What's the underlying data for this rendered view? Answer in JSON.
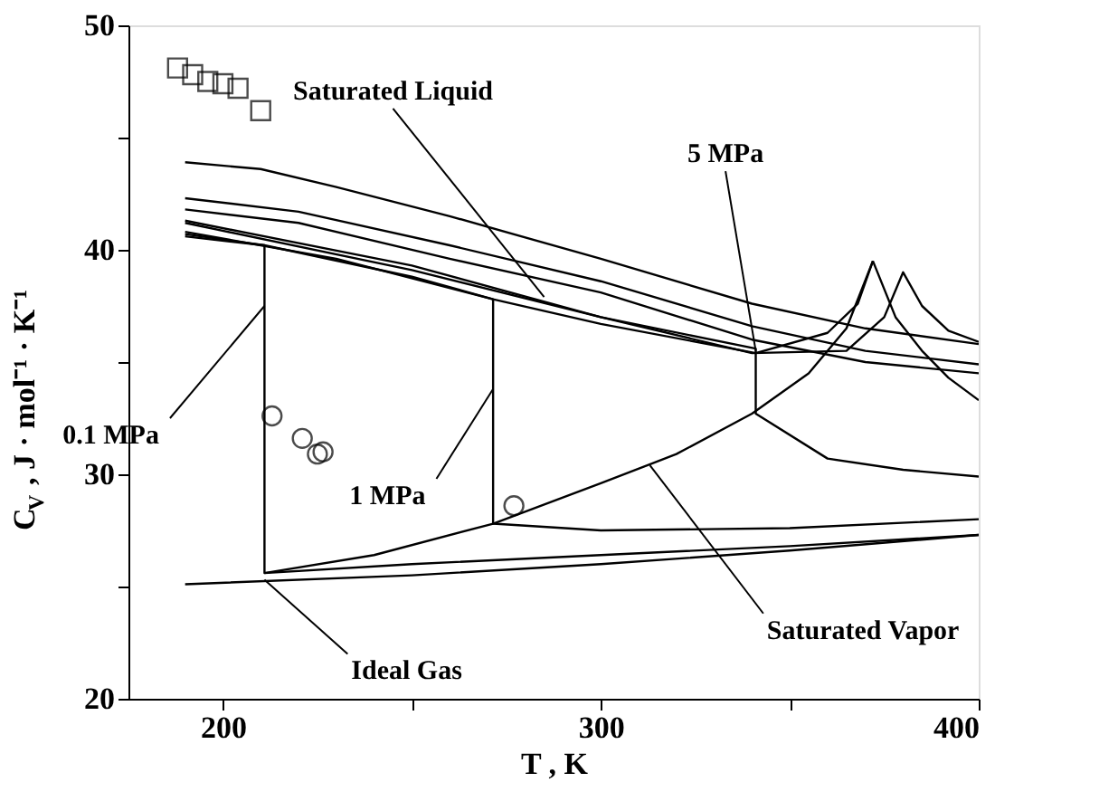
{
  "chart_data": {
    "type": "line",
    "xlabel": "T , K",
    "ylabel": "C$_{V}$ , J · mol⁻¹ · K⁻¹",
    "xlim": [
      175,
      400
    ],
    "xticks": [
      200,
      {
        "value": 250,
        "label": null
      },
      300,
      {
        "value": 350,
        "label": null
      },
      400
    ],
    "ylim": [
      20,
      50
    ],
    "yticks": [
      20,
      {
        "value": 25,
        "label": null
      },
      30,
      {
        "value": 35,
        "label": null
      },
      40,
      {
        "value": 45,
        "label": null
      },
      50
    ],
    "grid": false,
    "series": [
      {
        "color": "#000000",
        "x": [
          190,
          210,
          230,
          260,
          300,
          340,
          370,
          400
        ],
        "values": [
          43.9,
          43.6,
          42.8,
          41.5,
          39.6,
          37.6,
          36.5,
          35.8
        ]
      },
      {
        "color": "#000000",
        "x": [
          190,
          220,
          260,
          300,
          340,
          370,
          400
        ],
        "values": [
          42.3,
          41.7,
          40.2,
          38.6,
          36.6,
          35.5,
          34.9
        ]
      },
      {
        "color": "#000000",
        "x": [
          190,
          220,
          260,
          300,
          340,
          370,
          400
        ],
        "values": [
          41.8,
          41.2,
          39.6,
          38.1,
          36.0,
          35.0,
          34.5
        ]
      },
      {
        "color": "#000000",
        "x": [
          190,
          250,
          300,
          340,
          365,
          375,
          380,
          385,
          392,
          400
        ],
        "values": [
          41.3,
          39.3,
          37.0,
          35.4,
          35.5,
          37.0,
          39.0,
          37.5,
          36.4,
          35.9
        ]
      },
      {
        "color": "#000000",
        "x": [
          372,
          378,
          385,
          392,
          400
        ],
        "values": [
          39.5,
          37.0,
          35.5,
          34.3,
          33.3
        ]
      },
      {
        "color": "#000000",
        "x": [
          190,
          211,
          211,
          250,
          300,
          350,
          400
        ],
        "values": [
          40.7,
          40.2,
          25.6,
          26.0,
          26.4,
          26.8,
          27.3
        ]
      },
      {
        "color": "#000000",
        "x": [
          190,
          230,
          271.5,
          271.5,
          300,
          350,
          400
        ],
        "values": [
          40.8,
          39.6,
          37.8,
          27.8,
          27.5,
          27.6,
          28.0
        ]
      },
      {
        "color": "#000000",
        "x": [
          190,
          250,
          300,
          341,
          341,
          360,
          380,
          400
        ],
        "values": [
          41.2,
          39.1,
          37.0,
          35.6,
          32.7,
          30.7,
          30.2,
          29.9
        ]
      },
      {
        "color": "#000000",
        "x": [
          190,
          211,
          250,
          271.5,
          300,
          341,
          360,
          368,
          372
        ],
        "values": [
          40.6,
          40.2,
          38.8,
          37.8,
          36.7,
          35.4,
          36.3,
          37.6,
          39.5
        ]
      },
      {
        "color": "#000000",
        "x": [
          211,
          240,
          271.5,
          300,
          320,
          340,
          355,
          365,
          372
        ],
        "values": [
          25.6,
          26.4,
          27.8,
          29.6,
          30.9,
          32.7,
          34.5,
          36.5,
          39.5
        ]
      },
      {
        "color": "#000000",
        "x": [
          190,
          250,
          300,
          350,
          400
        ],
        "values": [
          25.1,
          25.5,
          26.0,
          26.6,
          27.3
        ]
      },
      {
        "type": "scatter",
        "marker": "square",
        "color": "#000000",
        "x": [
          188,
          192,
          196,
          200,
          204,
          210
        ],
        "values": [
          48.1,
          47.8,
          47.5,
          47.4,
          47.2,
          46.2
        ]
      },
      {
        "type": "scatter",
        "marker": "circle",
        "color": "#000000",
        "x": [
          213,
          221,
          225,
          226.5,
          277
        ],
        "values": [
          32.6,
          31.6,
          30.9,
          31.0,
          28.6
        ]
      }
    ],
    "annotations": [
      {
        "text": "Saturated Liquid",
        "x": 285,
        "y": 37.9
      },
      {
        "text": "5 MPa",
        "x": 341,
        "y": 35.5
      },
      {
        "text": "0.1 MPa",
        "x": 211,
        "y": 37.5
      },
      {
        "text": "1 MPa",
        "x": 271.5,
        "y": 33.8
      },
      {
        "text": "Saturated Vapor",
        "x": 313,
        "y": 30.4
      },
      {
        "text": "Ideal Gas",
        "x": 211,
        "y": 25.3
      }
    ]
  }
}
